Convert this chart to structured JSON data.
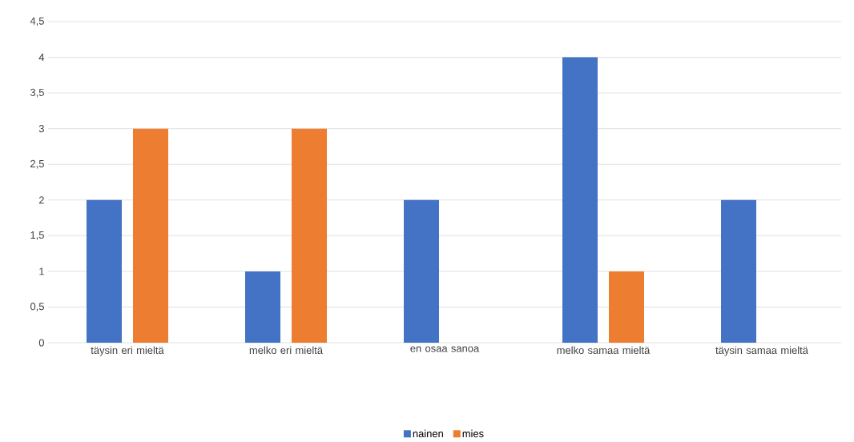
{
  "chart_data": {
    "type": "bar",
    "categories": [
      "täysin eri mieltä",
      "melko eri mieltä",
      "en osaa sanoa",
      "melko samaa mieltä",
      "täysin samaa mieltä"
    ],
    "series": [
      {
        "name": "nainen",
        "color": "#4472c4",
        "values": [
          2,
          1,
          2,
          4,
          2
        ]
      },
      {
        "name": "mies",
        "color": "#ed7d31",
        "values": [
          3,
          3,
          0,
          1,
          0
        ]
      }
    ],
    "ylim": [
      0,
      4.5
    ],
    "yticks": [
      0,
      {
        "value": 0.5,
        "label": "0,5"
      },
      1,
      {
        "value": 1.5,
        "label": "1,5"
      },
      2,
      {
        "value": 2.5,
        "label": "2,5"
      },
      3,
      {
        "value": 3.5,
        "label": "3,5"
      },
      4,
      {
        "value": 4.5,
        "label": "4,5"
      }
    ],
    "grid": "y",
    "legend": "bottom"
  }
}
